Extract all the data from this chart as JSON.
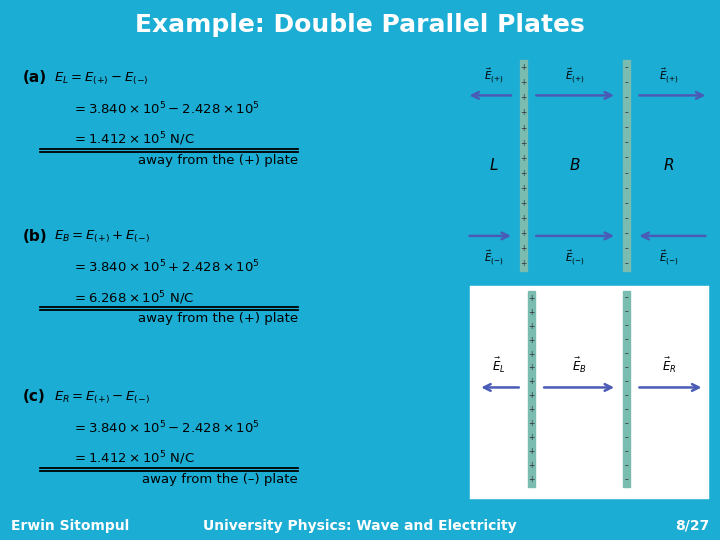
{
  "title": "Example: Double Parallel Plates",
  "title_bg": "#1BADD4",
  "title_color": "#FFFFFF",
  "title_fontsize": 18,
  "slide_bg": "#1BADD4",
  "body_bg": "#FFFFFF",
  "footer_left": "Erwin Sitompul",
  "footer_right": "University Physics: Wave and Electricity",
  "footer_page": "8/27",
  "footer_color": "#FFFFFF",
  "footer_fontsize": 10,
  "section_a_label": "(a)",
  "section_b_label": "(b)",
  "section_c_label": "(c)",
  "eq_a_line1": "$E_L = E_{(+)} - E_{(-)}$",
  "eq_a_line2": "$= 3.840\\times10^5 - 2.428\\times10^5$",
  "eq_a_line3": "$= 1.412\\times10^5$ N/C",
  "eq_a_caption": "away from the (+) plate",
  "eq_b_line1": "$E_B = E_{(+)} + E_{(-)}$",
  "eq_b_line2": "$= 3.840\\times10^5 + 2.428\\times10^5$",
  "eq_b_line3": "$= 6.268\\times10^5$ N/C",
  "eq_b_caption": "away from the (+) plate",
  "eq_c_line1": "$E_R = E_{(+)} - E_{(-)}$",
  "eq_c_line2": "$= 3.840\\times10^5 - 2.428\\times10^5$",
  "eq_c_line3": "$= 1.412\\times10^5$ N/C",
  "eq_c_caption": "away from the (–) plate",
  "plate_color_pos": "#8EC4B8",
  "plate_color_neg": "#A0C8BC",
  "arrow_color": "#4A5BB5",
  "diagram_border_color": "#1BADD4",
  "text_color": "#000000"
}
